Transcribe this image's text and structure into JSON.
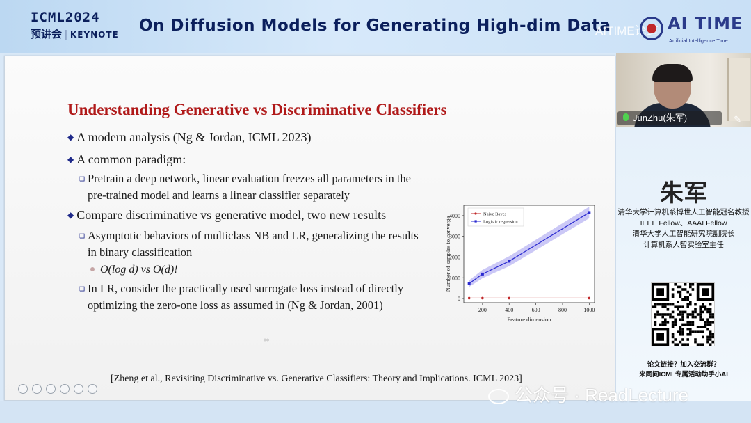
{
  "header": {
    "event_line1": "ICML2024",
    "event_line2_cn": "预讲会",
    "event_sep": "|",
    "event_line2_kw": "KEYNOTE",
    "talk_title": "On Diffusion Models for Generating High-dim Data",
    "watermark": "AITIME论道",
    "logo_name": "AI TIME",
    "logo_sub": "Artificial Intelligence Time"
  },
  "slide": {
    "title": "Understanding Generative vs Discriminative Classifiers",
    "bullets": [
      "A modern analysis (Ng & Jordan, ICML 2023)",
      "A common paradigm:",
      "Compare discriminative vs generative model, two new results"
    ],
    "sub_bullets": [
      "Pretrain a deep network, linear evaluation freezes all parameters in the pre-trained model and learns a linear classifier separately",
      "Asymptotic behaviors of multiclass NB and LR, generalizing the results in binary classification",
      "In LR, consider the practically used surrogate loss instead of directly optimizing the zero-one loss as assumed in (Ng & Jordan, 2001)"
    ],
    "complexity_note": "O(log d) vs O(d)!",
    "tiny_mark": "⁎⁎",
    "citation": "[Zheng et al., Revisiting Discriminative vs. Generative Classifiers: Theory and Implications. ICML 2023]"
  },
  "chart_data": {
    "type": "line",
    "title": "",
    "xlabel": "Feature dimension",
    "ylabel": "Number of samples to converge",
    "x": [
      100,
      200,
      400,
      1000
    ],
    "xticks": [
      200,
      400,
      600,
      800,
      1000
    ],
    "yticks": [
      0,
      1000,
      2000,
      3000,
      4000
    ],
    "xlim": [
      60,
      1040
    ],
    "ylim": [
      -200,
      4500
    ],
    "grid": false,
    "legend": "top-left",
    "series": [
      {
        "name": "Naive Bayes",
        "values": [
          20,
          20,
          20,
          20
        ],
        "color": "#c0282a"
      },
      {
        "name": "Logistic regression",
        "values": [
          720,
          1180,
          1800,
          4150
        ],
        "color": "#2a2ad0"
      }
    ]
  },
  "speaker": {
    "camera_name": "JunZhu(朱军)",
    "name": "朱军",
    "bio": [
      "清华大学计算机系博世人工智能冠名教授",
      "IEEE Fellow、AAAI Fellow",
      "清华大学人工智能研究院副院长",
      "计算机系人智实验室主任"
    ],
    "note": [
      "论文链接？加入交流群？",
      "来同问ICML专属活动助手小AI"
    ]
  },
  "footer": {
    "wechat_watermark": "公众号 · ReadLecture"
  }
}
